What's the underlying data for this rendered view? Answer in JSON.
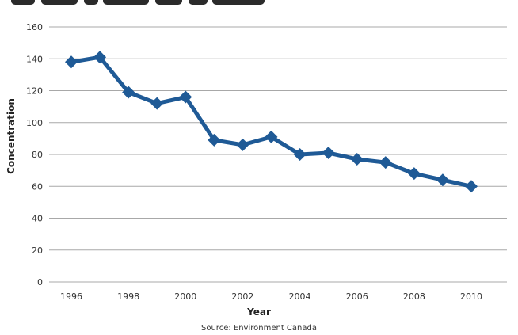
{
  "chart_data": {
    "type": "line",
    "title": "",
    "xlabel": "Year",
    "ylabel": "Concentration",
    "source": "Source: Environment Canada",
    "x": [
      1996,
      1997,
      1998,
      1999,
      2000,
      2001,
      2002,
      2003,
      2004,
      2005,
      2006,
      2007,
      2008,
      2009,
      2010
    ],
    "series": [
      {
        "values": [
          138,
          141,
          119,
          112,
          116,
          89,
          86,
          91,
          80,
          81,
          77,
          75,
          68,
          64,
          60
        ]
      }
    ],
    "xticks": [
      "1996",
      "1998",
      "2000",
      "2002",
      "2004",
      "2006",
      "2008",
      "2010"
    ],
    "yticks": [
      "0",
      "20",
      "40",
      "60",
      "80",
      "100",
      "120",
      "140",
      "160"
    ],
    "ylim": [
      0,
      160
    ],
    "xlim": [
      1996,
      2010
    ],
    "grid": true,
    "line_color": "#1f5a96",
    "grid_color": "#a8a8a8"
  }
}
